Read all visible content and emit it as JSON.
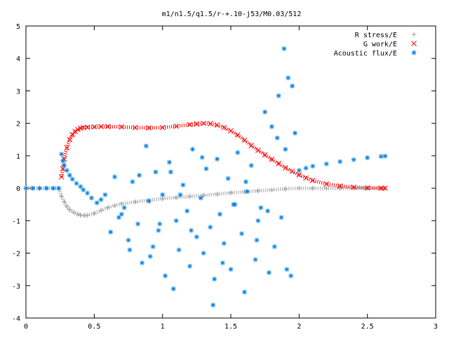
{
  "chart_data": {
    "type": "scatter",
    "title": "m1/n1.5/q1.5/r-+.10-j53/M0.03/512",
    "xlabel": "",
    "ylabel": "",
    "xlim": [
      0,
      3
    ],
    "ylim": [
      -4,
      5
    ],
    "xticks": [
      "0",
      "0.5",
      "1",
      "1.5",
      "2",
      "2.5",
      "3"
    ],
    "yticks": [
      "5",
      "4",
      "3",
      "2",
      "1",
      "0",
      "-1",
      "-2",
      "-3",
      "-4"
    ],
    "grid": false,
    "legend_position": "top-right",
    "series": [
      {
        "name": "R stress/E",
        "marker": "+",
        "color": "#a0a0a0",
        "x": [
          0.0,
          0.05,
          0.1,
          0.15,
          0.2,
          0.24,
          0.26,
          0.28,
          0.3,
          0.32,
          0.35,
          0.38,
          0.4,
          0.43,
          0.45,
          0.5,
          0.55,
          0.6,
          0.65,
          0.7,
          0.8,
          0.9,
          1.0,
          1.1,
          1.2,
          1.3,
          1.4,
          1.5,
          1.6,
          1.7,
          1.8,
          1.9,
          2.0,
          2.1,
          2.2,
          2.3,
          2.4,
          2.5,
          2.6,
          2.63
        ],
        "y": [
          0.0,
          0.0,
          0.0,
          0.0,
          0.0,
          0.0,
          -0.25,
          -0.42,
          -0.56,
          -0.66,
          -0.74,
          -0.8,
          -0.83,
          -0.84,
          -0.83,
          -0.78,
          -0.68,
          -0.6,
          -0.53,
          -0.48,
          -0.42,
          -0.37,
          -0.32,
          -0.29,
          -0.25,
          -0.22,
          -0.18,
          -0.14,
          -0.11,
          -0.08,
          -0.05,
          -0.02,
          0.0,
          0.0,
          0.0,
          0.0,
          0.0,
          0.0,
          0.0,
          0.0
        ]
      },
      {
        "name": "G work/E",
        "marker": "x",
        "color": "#ff0000",
        "x": [
          0.26,
          0.27,
          0.28,
          0.3,
          0.32,
          0.34,
          0.36,
          0.38,
          0.4,
          0.42,
          0.45,
          0.5,
          0.55,
          0.6,
          0.7,
          0.8,
          0.9,
          1.0,
          1.1,
          1.2,
          1.25,
          1.3,
          1.35,
          1.4,
          1.45,
          1.5,
          1.55,
          1.6,
          1.65,
          1.7,
          1.75,
          1.8,
          1.85,
          1.9,
          1.95,
          2.0,
          2.05,
          2.1,
          2.2,
          2.3,
          2.4,
          2.5,
          2.6,
          2.63
        ],
        "y": [
          0.35,
          0.6,
          0.9,
          1.25,
          1.5,
          1.65,
          1.75,
          1.81,
          1.85,
          1.87,
          1.88,
          1.89,
          1.9,
          1.9,
          1.89,
          1.87,
          1.86,
          1.87,
          1.91,
          1.96,
          1.98,
          2.0,
          1.99,
          1.95,
          1.87,
          1.77,
          1.64,
          1.48,
          1.32,
          1.17,
          1.03,
          0.89,
          0.76,
          0.63,
          0.52,
          0.41,
          0.32,
          0.24,
          0.13,
          0.07,
          0.03,
          0.01,
          0.0,
          0.0
        ]
      },
      {
        "name": "Acoustic flux/E",
        "marker": "*",
        "color": "#0080e0",
        "x": [
          0.0,
          0.05,
          0.1,
          0.15,
          0.2,
          0.24,
          0.26,
          0.27,
          0.28,
          0.3,
          0.32,
          0.34,
          0.37,
          0.4,
          0.42,
          0.45,
          0.48,
          0.52,
          0.55,
          0.58,
          0.62,
          0.65,
          0.68,
          0.72,
          0.75,
          0.78,
          0.82,
          0.85,
          0.88,
          0.9,
          0.93,
          0.95,
          0.97,
          1.0,
          1.02,
          1.05,
          1.08,
          1.1,
          1.12,
          1.15,
          1.18,
          1.2,
          1.22,
          1.25,
          1.28,
          1.3,
          1.32,
          1.35,
          1.38,
          1.4,
          1.42,
          1.45,
          1.48,
          1.5,
          1.52,
          1.55,
          1.58,
          1.6,
          1.62,
          1.65,
          1.68,
          1.7,
          1.72,
          1.75,
          1.78,
          1.8,
          1.82,
          1.85,
          1.87,
          1.89,
          1.9,
          1.92,
          1.94,
          1.95,
          1.97,
          2.0,
          2.05,
          2.1,
          2.2,
          2.3,
          2.4,
          2.5,
          2.6,
          2.63,
          0.7,
          0.76,
          0.83,
          0.91,
          0.98,
          1.06,
          1.13,
          1.21,
          1.29,
          1.37,
          1.44,
          1.53,
          1.61,
          1.69,
          1.77,
          1.84,
          1.91
        ],
        "y": [
          0.0,
          0.0,
          0.0,
          0.0,
          0.0,
          0.0,
          1.05,
          0.85,
          0.7,
          0.55,
          0.4,
          0.28,
          0.15,
          0.05,
          -0.05,
          -0.15,
          -0.3,
          -0.45,
          -0.35,
          -0.2,
          -1.35,
          0.35,
          -0.9,
          -0.6,
          -1.6,
          0.2,
          -1.1,
          -2.3,
          1.3,
          -0.4,
          -1.8,
          0.5,
          -1.3,
          -0.2,
          -2.7,
          0.8,
          -3.1,
          -1.0,
          -1.9,
          0.1,
          -0.7,
          -2.4,
          1.2,
          -1.5,
          -0.3,
          -2.0,
          0.6,
          -1.2,
          -2.8,
          0.9,
          -0.8,
          -1.7,
          0.3,
          -2.5,
          -0.5,
          1.1,
          -1.4,
          -3.2,
          -0.1,
          0.7,
          -2.2,
          -1.0,
          -0.6,
          2.35,
          -2.6,
          1.9,
          -1.8,
          2.85,
          -0.9,
          4.3,
          1.2,
          3.4,
          -2.7,
          3.15,
          1.7,
          0.55,
          0.62,
          0.68,
          0.75,
          0.82,
          0.88,
          0.94,
          0.98,
          0.99,
          -0.8,
          -1.9,
          0.4,
          -2.1,
          -1.1,
          0.5,
          -0.2,
          -1.3,
          0.95,
          -3.6,
          -2.3,
          -0.5,
          0.2,
          -1.6,
          -0.7,
          1.55,
          -2.5
        ]
      }
    ]
  }
}
